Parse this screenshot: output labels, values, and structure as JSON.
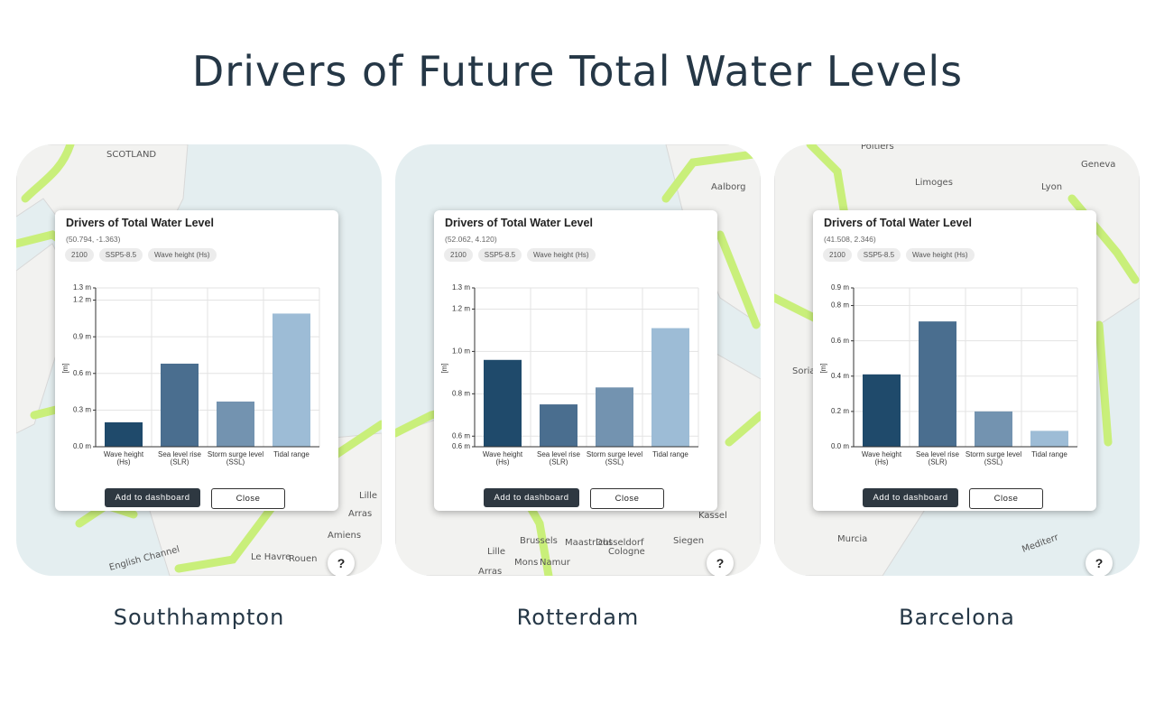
{
  "title": "Drivers of Future Total Water Levels",
  "panels": [
    {
      "city": "Southhampton",
      "map_labels": [
        "SCOTLAND",
        "Lille",
        "Arras",
        "Amiens",
        "English Channel",
        "Le Havre",
        "Rouen"
      ],
      "popup": {
        "title": "Drivers of Total Water Level",
        "coords": "(50.794, -1.363)",
        "tags": [
          "2100",
          "SSP5-8.5",
          "Wave height (Hs)"
        ],
        "buttons": [
          "Add to dashboard",
          "Close"
        ]
      },
      "chart": {
        "type": "bar",
        "y_label": "[m]",
        "categories": [
          [
            "Wave height",
            "(Hs)"
          ],
          [
            "Sea level rise",
            "(SLR)"
          ],
          [
            "Storm surge level",
            "(SSL)"
          ],
          [
            "Tidal range"
          ]
        ],
        "values": [
          0.2,
          0.68,
          0.37,
          1.09
        ],
        "colors": [
          "#1f4a6b",
          "#4a6e8f",
          "#7393b0",
          "#9dbcd6"
        ],
        "ylim": [
          0,
          1.3
        ],
        "yticks": [
          {
            "value": 0,
            "label": "0.0 m"
          },
          {
            "value": 0.3,
            "label": "0.3 m"
          },
          {
            "value": 0.6,
            "label": "0.6 m"
          },
          {
            "value": 0.9,
            "label": "0.9 m"
          },
          {
            "value": 1.2,
            "label": "1.2 m"
          },
          {
            "value": 1.3,
            "label": "1.3 m"
          }
        ],
        "grid": true
      },
      "help": "?"
    },
    {
      "city": "Rotterdam",
      "map_labels": [
        "Aalborg",
        "Dusseldorf",
        "Brussels",
        "Maastricht",
        "Cologne",
        "Siegen",
        "Kassel",
        "Lille",
        "Mons",
        "Namur",
        "Arras"
      ],
      "popup": {
        "title": "Drivers of Total Water Level",
        "coords": "(52.062, 4.120)",
        "tags": [
          "2100",
          "SSP5-8.5",
          "Wave height (Hs)"
        ],
        "buttons": [
          "Add to dashboard",
          "Close"
        ]
      },
      "chart": {
        "type": "bar",
        "y_label": "[m]",
        "categories": [
          [
            "Wave height",
            "(Hs)"
          ],
          [
            "Sea level rise",
            "(SLR)"
          ],
          [
            "Storm surge level",
            "(SSL)"
          ],
          [
            "Tidal range"
          ]
        ],
        "values": [
          0.96,
          0.75,
          0.83,
          1.11
        ],
        "colors": [
          "#1f4a6b",
          "#4a6e8f",
          "#7393b0",
          "#9dbcd6"
        ],
        "ylim": [
          0.55,
          1.3
        ],
        "yticks": [
          {
            "value": 0.55,
            "label": "0.6 m"
          },
          {
            "value": 0.6,
            "label": "0.6 m"
          },
          {
            "value": 0.8,
            "label": "0.8 m"
          },
          {
            "value": 1.0,
            "label": "1.0 m"
          },
          {
            "value": 1.2,
            "label": "1.2 m"
          },
          {
            "value": 1.3,
            "label": "1.3 m"
          }
        ],
        "grid": true
      },
      "help": "?"
    },
    {
      "city": "Barcelona",
      "map_labels": [
        "Poitiers",
        "Limoges",
        "Lyon",
        "Geneva",
        "Soria",
        "Murcia",
        "Mediterr"
      ],
      "popup": {
        "title": "Drivers of Total Water Level",
        "coords": "(41.508, 2.346)",
        "tags": [
          "2100",
          "SSP5-8.5",
          "Wave height (Hs)"
        ],
        "buttons": [
          "Add to dashboard",
          "Close"
        ]
      },
      "chart": {
        "type": "bar",
        "y_label": "[m]",
        "categories": [
          [
            "Wave height",
            "(Hs)"
          ],
          [
            "Sea level rise",
            "(SLR)"
          ],
          [
            "Storm surge level",
            "(SSL)"
          ],
          [
            "Tidal range"
          ]
        ],
        "values": [
          0.41,
          0.71,
          0.2,
          0.09
        ],
        "colors": [
          "#1f4a6b",
          "#4a6e8f",
          "#7393b0",
          "#9dbcd6"
        ],
        "ylim": [
          0,
          0.9
        ],
        "yticks": [
          {
            "value": 0,
            "label": "0.0 m"
          },
          {
            "value": 0.2,
            "label": "0.2 m"
          },
          {
            "value": 0.4,
            "label": "0.4 m"
          },
          {
            "value": 0.6,
            "label": "0.6 m"
          },
          {
            "value": 0.8,
            "label": "0.8 m"
          },
          {
            "value": 0.9,
            "label": "0.9 m"
          }
        ],
        "grid": true
      },
      "help": "?"
    }
  ]
}
